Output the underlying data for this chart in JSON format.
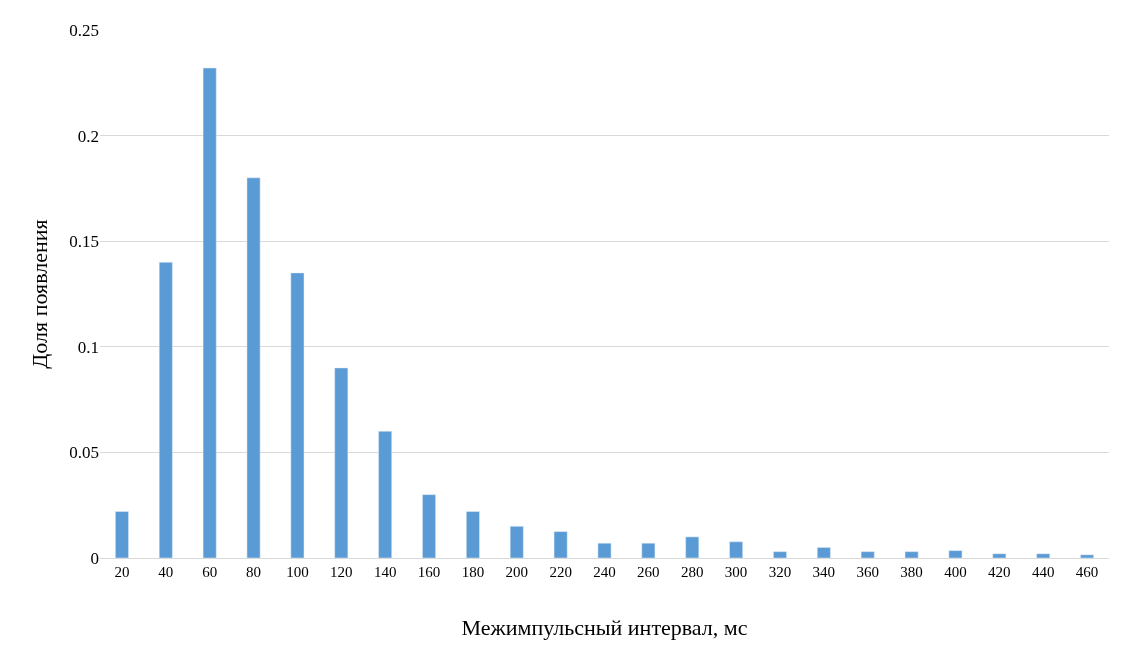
{
  "chart_data": {
    "type": "bar",
    "xlabel": "Межимпульсный интервал, мс",
    "ylabel": "Доля появления",
    "categories": [
      "20",
      "40",
      "60",
      "80",
      "100",
      "120",
      "140",
      "160",
      "180",
      "200",
      "220",
      "240",
      "260",
      "280",
      "300",
      "320",
      "340",
      "360",
      "380",
      "400",
      "420",
      "440",
      "460"
    ],
    "values": [
      0.022,
      0.14,
      0.232,
      0.18,
      0.135,
      0.09,
      0.06,
      0.03,
      0.022,
      0.015,
      0.0125,
      0.007,
      0.007,
      0.01,
      0.0077,
      0.003,
      0.005,
      0.003,
      0.003,
      0.0035,
      0.002,
      0.002,
      0.0015
    ],
    "color": "#5b9bd5",
    "ylim": [
      0,
      0.25
    ],
    "yticks": [
      {
        "value": 0,
        "label": "0"
      },
      0.05,
      0.1,
      0.15,
      0.2,
      0.25
    ],
    "grid": "y",
    "legend": false
  }
}
